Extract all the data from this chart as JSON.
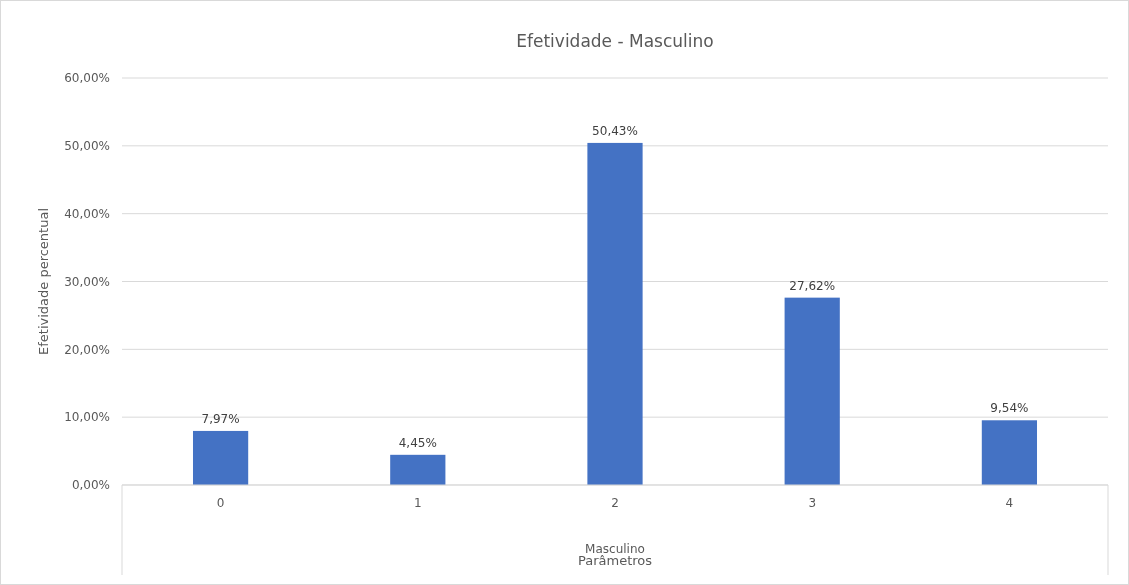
{
  "chart_data": {
    "type": "bar",
    "title": "Efetividade - Masculino",
    "xlabel": "Parâmetros",
    "ylabel": "Efetividade percentual",
    "categories": [
      "0",
      "1",
      "2",
      "3",
      "4"
    ],
    "values": [
      7.97,
      4.45,
      50.43,
      27.62,
      9.54
    ],
    "value_labels": [
      "7,97%",
      "4,45%",
      "50,43%",
      "27,62%",
      "9,54%"
    ],
    "color": "#4472c4",
    "ylim": [
      0,
      60
    ],
    "yticks": [
      {
        "value": 0,
        "label": "0,00%"
      },
      {
        "value": 10,
        "label": "10,00%"
      },
      {
        "value": 20,
        "label": "20,00%"
      },
      {
        "value": 30,
        "label": "30,00%"
      },
      {
        "value": 40,
        "label": "40,00%"
      },
      {
        "value": 50,
        "label": "50,00%"
      },
      {
        "value": 60,
        "label": "60,00%"
      }
    ],
    "grid": "y",
    "annotations": [
      "Masculino"
    ]
  }
}
